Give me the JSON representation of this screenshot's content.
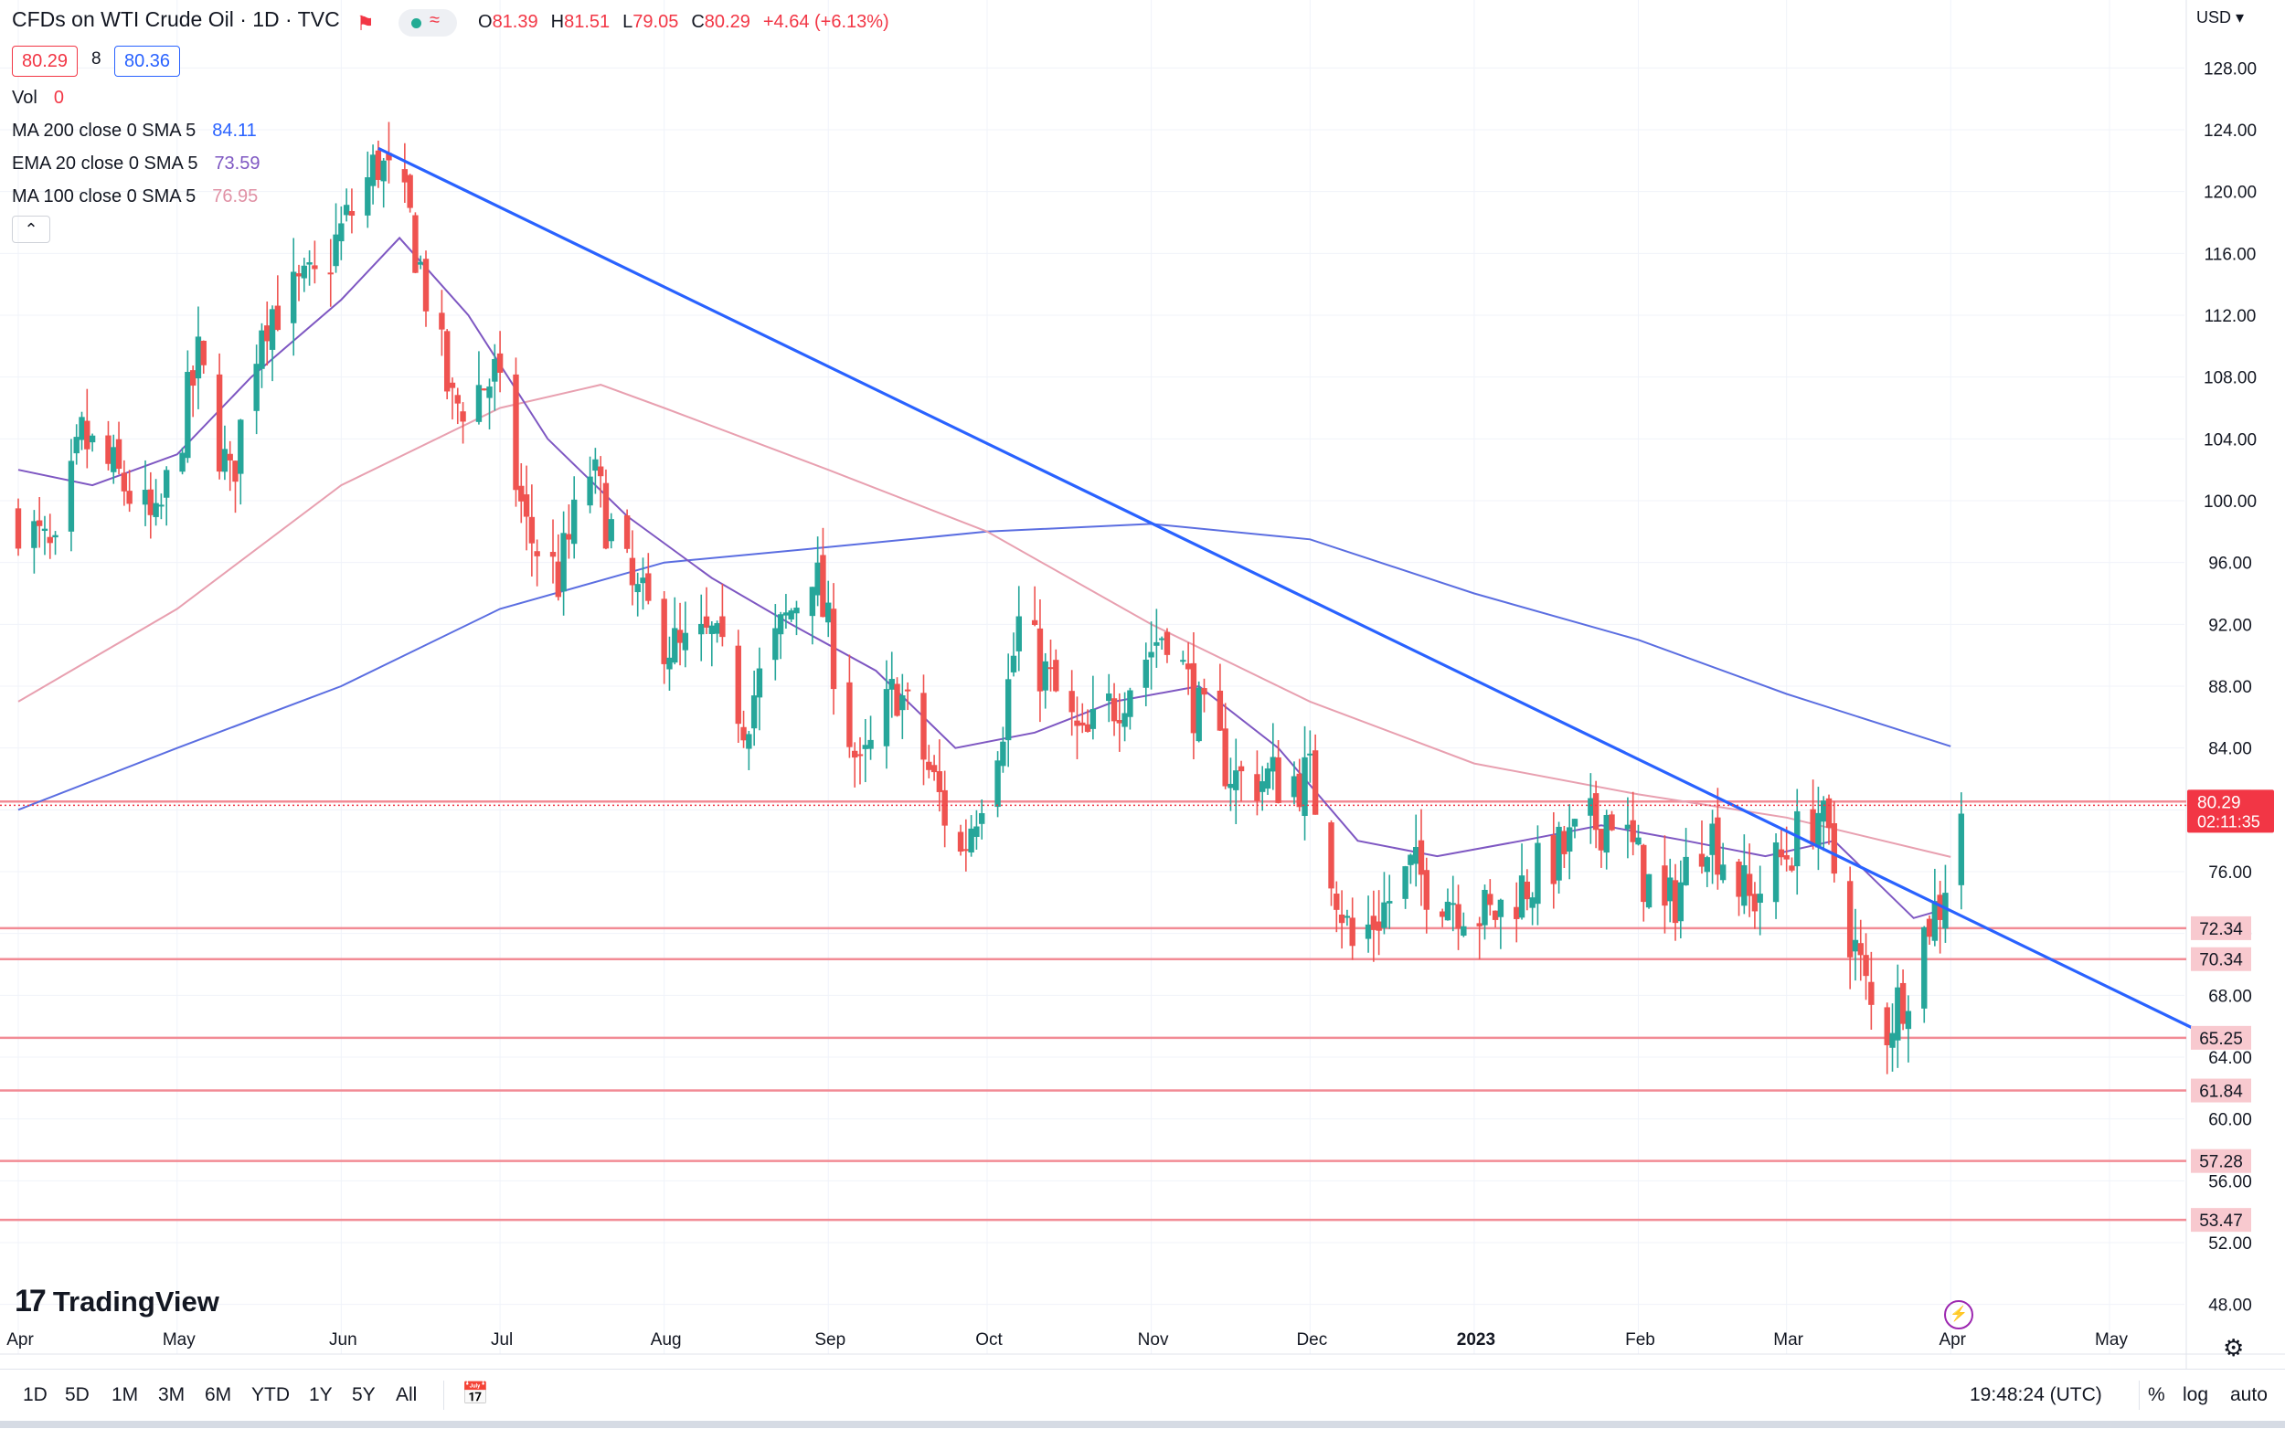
{
  "header": {
    "title": "CFDs on WTI Crude Oil · 1D · TVC",
    "ohlc": [
      {
        "k": "O",
        "v": "81.39"
      },
      {
        "k": "H",
        "v": "81.51"
      },
      {
        "k": "L",
        "v": "79.05"
      },
      {
        "k": "C",
        "v": "80.29"
      }
    ],
    "change": "+4.64 (+6.13%)",
    "status_symbol": "≈",
    "sell": "80.29",
    "spread": "8",
    "buy": "80.36",
    "currency": "USD"
  },
  "indicators": [
    {
      "name": "Vol",
      "value": "0",
      "color": "#f23645"
    },
    {
      "name": "MA 200 close 0 SMA 5",
      "value": "84.11",
      "color": "#2962ff"
    },
    {
      "name": "EMA 20 close 0 SMA 5",
      "value": "73.59",
      "color": "#7e57c2"
    },
    {
      "name": "MA 100 close 0 SMA 5",
      "value": "76.95",
      "color": "#e091a5"
    }
  ],
  "collapse_icon": "chevron-up-icon",
  "logo_text": "TradingView",
  "toolbar": {
    "timeframes": [
      "1D",
      "5D",
      "1M",
      "3M",
      "6M",
      "YTD",
      "1Y",
      "5Y",
      "All"
    ],
    "clock": "19:48:24 (UTC)",
    "percent": "%",
    "log": "log",
    "auto": "auto"
  },
  "chart_data": {
    "type": "candlestick",
    "symbol": "CFDs on WTI Crude Oil",
    "interval": "1D",
    "x_axis_labels": [
      "Apr",
      "May",
      "Jun",
      "Jul",
      "Aug",
      "Sep",
      "Oct",
      "Nov",
      "Dec",
      "2023",
      "Feb",
      "Mar",
      "Apr",
      "May"
    ],
    "y_axis_ticks": [
      48,
      52,
      56,
      60,
      64,
      68,
      72,
      76,
      80,
      84,
      88,
      92,
      96,
      100,
      104,
      108,
      112,
      116,
      120,
      124,
      128
    ],
    "ylim": [
      46,
      130
    ],
    "last_price": 80.29,
    "last_price_countdown": "02:11:35",
    "horizontal_levels": [
      80.54,
      72.34,
      70.34,
      65.25,
      61.84,
      57.28,
      53.47
    ],
    "trendline": {
      "from": {
        "date": "2022-06-08",
        "price": 122.8
      },
      "to": {
        "date": "2023-05-19",
        "price": 65.5
      }
    },
    "price_anchors": [
      [
        "2022-04-01",
        99
      ],
      [
        "2022-04-08",
        96
      ],
      [
        "2022-04-13",
        104
      ],
      [
        "2022-04-21",
        101
      ],
      [
        "2022-04-27",
        98
      ],
      [
        "2022-05-05",
        109
      ],
      [
        "2022-05-11",
        101
      ],
      [
        "2022-05-17",
        112
      ],
      [
        "2022-05-27",
        114
      ],
      [
        "2022-06-08",
        122
      ],
      [
        "2022-06-14",
        118
      ],
      [
        "2022-06-22",
        106
      ],
      [
        "2022-06-30",
        108
      ],
      [
        "2022-07-06",
        98
      ],
      [
        "2022-07-12",
        95
      ],
      [
        "2022-07-18",
        102
      ],
      [
        "2022-07-26",
        94
      ],
      [
        "2022-08-04",
        90
      ],
      [
        "2022-08-10",
        91
      ],
      [
        "2022-08-16",
        86
      ],
      [
        "2022-08-29",
        96
      ],
      [
        "2022-09-07",
        82
      ],
      [
        "2022-09-14",
        88
      ],
      [
        "2022-09-26",
        77
      ],
      [
        "2022-10-04",
        86
      ],
      [
        "2022-10-07",
        92
      ],
      [
        "2022-10-19",
        84
      ],
      [
        "2022-11-04",
        92
      ],
      [
        "2022-11-10",
        86
      ],
      [
        "2022-11-17",
        82
      ],
      [
        "2022-12-01",
        82
      ],
      [
        "2022-12-09",
        71
      ],
      [
        "2022-12-20",
        76
      ],
      [
        "2023-01-04",
        73
      ],
      [
        "2023-01-10",
        75
      ],
      [
        "2023-01-27",
        80
      ],
      [
        "2023-02-06",
        73
      ],
      [
        "2023-02-14",
        79
      ],
      [
        "2023-02-22",
        74
      ],
      [
        "2023-03-07",
        80
      ],
      [
        "2023-03-17",
        67
      ],
      [
        "2023-03-20",
        66
      ],
      [
        "2023-03-24",
        69
      ],
      [
        "2023-03-28",
        73
      ],
      [
        "2023-03-30",
        74
      ],
      [
        "2023-03-31",
        75.6
      ],
      [
        "2023-04-03",
        80.29
      ]
    ],
    "series": [
      {
        "name": "MA 200 close 0 SMA 5",
        "color": "#5b6ee1",
        "points": [
          [
            "2022-04-01",
            80
          ],
          [
            "2022-05-01",
            84
          ],
          [
            "2022-06-01",
            88
          ],
          [
            "2022-07-01",
            93
          ],
          [
            "2022-08-01",
            96
          ],
          [
            "2022-09-01",
            97
          ],
          [
            "2022-10-01",
            98
          ],
          [
            "2022-11-01",
            98.5
          ],
          [
            "2022-12-01",
            97.5
          ],
          [
            "2023-01-01",
            94
          ],
          [
            "2023-02-01",
            91
          ],
          [
            "2023-03-01",
            87.5
          ],
          [
            "2023-04-01",
            84.11
          ]
        ]
      },
      {
        "name": "MA 100 close 0 SMA 5",
        "color": "#e8a0b0",
        "points": [
          [
            "2022-04-01",
            87
          ],
          [
            "2022-05-01",
            93
          ],
          [
            "2022-06-01",
            101
          ],
          [
            "2022-07-01",
            106
          ],
          [
            "2022-07-20",
            107.5
          ],
          [
            "2022-08-01",
            106
          ],
          [
            "2022-09-01",
            102
          ],
          [
            "2022-10-01",
            98
          ],
          [
            "2022-11-01",
            92
          ],
          [
            "2022-12-01",
            87
          ],
          [
            "2023-01-01",
            83
          ],
          [
            "2023-02-01",
            81
          ],
          [
            "2023-03-01",
            79.5
          ],
          [
            "2023-04-01",
            76.95
          ]
        ]
      },
      {
        "name": "EMA 20 close 0 SMA 5",
        "color": "#7e57c2",
        "points": [
          [
            "2022-04-01",
            102
          ],
          [
            "2022-04-15",
            101
          ],
          [
            "2022-05-01",
            103
          ],
          [
            "2022-05-15",
            108
          ],
          [
            "2022-06-01",
            113
          ],
          [
            "2022-06-12",
            117
          ],
          [
            "2022-06-25",
            112
          ],
          [
            "2022-07-10",
            104
          ],
          [
            "2022-07-25",
            99
          ],
          [
            "2022-08-10",
            95
          ],
          [
            "2022-08-25",
            92
          ],
          [
            "2022-09-10",
            89
          ],
          [
            "2022-09-25",
            84
          ],
          [
            "2022-10-10",
            85
          ],
          [
            "2022-10-25",
            87
          ],
          [
            "2022-11-10",
            88
          ],
          [
            "2022-11-25",
            84
          ],
          [
            "2022-12-10",
            78
          ],
          [
            "2022-12-25",
            77
          ],
          [
            "2023-01-10",
            78
          ],
          [
            "2023-01-25",
            79
          ],
          [
            "2023-02-10",
            78
          ],
          [
            "2023-02-25",
            77
          ],
          [
            "2023-03-10",
            78
          ],
          [
            "2023-03-25",
            73
          ],
          [
            "2023-03-31",
            73.59
          ]
        ]
      }
    ]
  }
}
